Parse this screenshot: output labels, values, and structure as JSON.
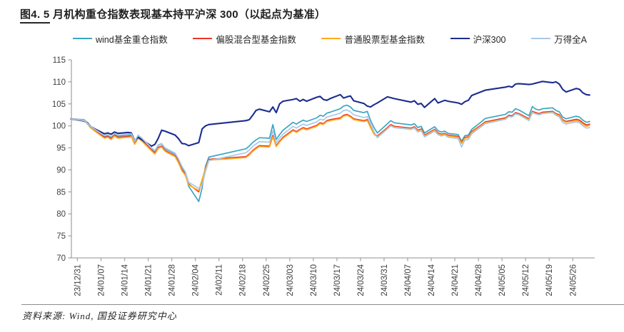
{
  "header": {
    "title_prefix": "图4. 5",
    "title_rest": " 月机构重仓指数表现基本持平沪深 300（以起点为基准）"
  },
  "footer": {
    "source": "资料来源: Wind, 国投证券研究中心"
  },
  "chart_data": {
    "type": "line",
    "title": "图4. 5 月机构重仓指数表现基本持平沪深 300（以起点为基准）",
    "xlabel": "",
    "ylabel": "",
    "ylim": [
      70,
      115
    ],
    "y_ticks": [
      70,
      75,
      80,
      85,
      90,
      95,
      100,
      105,
      110,
      115
    ],
    "x_tick_labels": [
      "23/12/31",
      "24/01/07",
      "24/01/14",
      "24/01/21",
      "24/01/28",
      "24/02/04",
      "24/02/11",
      "24/02/18",
      "24/02/25",
      "24/03/03",
      "24/03/10",
      "24/03/17",
      "24/03/24",
      "24/03/31",
      "24/04/07",
      "24/04/14",
      "24/04/21",
      "24/04/28",
      "24/05/05",
      "24/05/12",
      "24/05/19",
      "24/05/26"
    ],
    "legend_position": "top",
    "grid": false,
    "colors": {
      "axis": "#a6a6a6",
      "tick_text": "#404040"
    },
    "x": [
      "23/12/29",
      "24/01/02",
      "24/01/03",
      "24/01/04",
      "24/01/05",
      "24/01/08",
      "24/01/09",
      "24/01/10",
      "24/01/11",
      "24/01/12",
      "24/01/15",
      "24/01/16",
      "24/01/17",
      "24/01/18",
      "24/01/19",
      "24/01/22",
      "24/01/23",
      "24/01/24",
      "24/01/25",
      "24/01/26",
      "24/01/29",
      "24/01/30",
      "24/01/31",
      "24/02/01",
      "24/02/02",
      "24/02/05",
      "24/02/06",
      "24/02/07",
      "24/02/08",
      "24/02/19",
      "24/02/20",
      "24/02/21",
      "24/02/22",
      "24/02/23",
      "24/02/26",
      "24/02/27",
      "24/02/28",
      "24/02/29",
      "24/03/01",
      "24/03/04",
      "24/03/05",
      "24/03/06",
      "24/03/07",
      "24/03/08",
      "24/03/11",
      "24/03/12",
      "24/03/13",
      "24/03/14",
      "24/03/15",
      "24/03/18",
      "24/03/19",
      "24/03/20",
      "24/03/21",
      "24/03/22",
      "24/03/25",
      "24/03/26",
      "24/03/27",
      "24/03/28",
      "24/03/29",
      "24/04/01",
      "24/04/02",
      "24/04/03",
      "24/04/08",
      "24/04/09",
      "24/04/10",
      "24/04/11",
      "24/04/12",
      "24/04/15",
      "24/04/16",
      "24/04/17",
      "24/04/18",
      "24/04/19",
      "24/04/22",
      "24/04/23",
      "24/04/24",
      "24/04/25",
      "24/04/26",
      "24/04/29",
      "24/04/30",
      "24/05/06",
      "24/05/07",
      "24/05/08",
      "24/05/09",
      "24/05/10",
      "24/05/13",
      "24/05/14",
      "24/05/15",
      "24/05/16",
      "24/05/17",
      "24/05/20",
      "24/05/21",
      "24/05/22",
      "24/05/23",
      "24/05/24",
      "24/05/27",
      "24/05/28",
      "24/05/29",
      "24/05/30",
      "24/05/31"
    ],
    "series": [
      {
        "name": "wind基金重仓指数",
        "color": "#3aa6c3",
        "values": [
          101.6,
          101.4,
          100.6,
          99.7,
          99.2,
          97.6,
          97.8,
          97.4,
          98.2,
          97.7,
          97.9,
          98.0,
          96.3,
          97.8,
          97.2,
          94.9,
          94.2,
          95.6,
          95.9,
          94.8,
          93.6,
          92.2,
          90.3,
          89.2,
          86.3,
          82.8,
          85.9,
          90.8,
          92.9,
          94.8,
          95.4,
          96.2,
          96.8,
          97.3,
          97.2,
          100.3,
          96.9,
          98.0,
          99.0,
          100.8,
          100.4,
          100.9,
          101.3,
          101.0,
          101.8,
          102.4,
          102.2,
          102.9,
          103.1,
          103.9,
          104.5,
          104.7,
          104.3,
          103.5,
          103.0,
          103.3,
          101.2,
          99.6,
          98.4,
          100.5,
          101.2,
          100.7,
          100.2,
          100.5,
          99.6,
          99.9,
          98.4,
          99.8,
          98.9,
          98.6,
          98.8,
          98.3,
          98.0,
          96.5,
          97.8,
          97.9,
          99.2,
          101.0,
          101.7,
          102.6,
          103.2,
          103.1,
          103.9,
          103.6,
          102.3,
          104.4,
          103.8,
          103.6,
          103.9,
          104.1,
          103.5,
          103.2,
          102.0,
          101.6,
          102.2,
          102.0,
          101.3,
          100.8,
          101.0
        ]
      },
      {
        "name": "偏股混合型基金指数",
        "color": "#ee3326",
        "values": [
          101.6,
          101.3,
          100.5,
          99.6,
          99.0,
          97.4,
          97.6,
          97.1,
          97.9,
          97.4,
          97.6,
          97.7,
          96.0,
          97.4,
          96.8,
          94.5,
          93.8,
          95.1,
          95.4,
          94.4,
          93.2,
          91.8,
          90.0,
          89.0,
          86.8,
          85.0,
          87.6,
          90.4,
          92.4,
          93.0,
          93.6,
          94.4,
          95.0,
          95.5,
          95.4,
          97.8,
          95.5,
          96.5,
          97.4,
          99.1,
          98.7,
          99.2,
          99.6,
          99.3,
          100.1,
          100.7,
          100.5,
          101.2,
          101.4,
          101.8,
          102.4,
          102.6,
          102.2,
          101.6,
          101.2,
          101.4,
          99.8,
          98.3,
          97.7,
          99.6,
          100.3,
          99.9,
          99.5,
          99.8,
          99.0,
          99.3,
          97.9,
          99.2,
          98.4,
          98.1,
          98.3,
          97.9,
          97.6,
          96.2,
          97.4,
          97.5,
          98.7,
          100.3,
          100.9,
          101.8,
          102.4,
          102.3,
          103.0,
          102.8,
          101.6,
          103.3,
          103.0,
          102.8,
          103.1,
          103.3,
          102.8,
          102.5,
          101.4,
          101.0,
          101.5,
          101.3,
          100.7,
          100.2,
          100.4
        ]
      },
      {
        "name": "普通股票型基金指数",
        "color": "#ffaa1c",
        "values": [
          101.6,
          101.3,
          100.4,
          99.5,
          98.9,
          97.2,
          97.4,
          96.9,
          97.7,
          97.2,
          97.4,
          97.5,
          95.8,
          97.2,
          96.6,
          94.3,
          93.6,
          94.9,
          95.2,
          94.2,
          93.0,
          91.6,
          89.8,
          88.8,
          86.6,
          85.3,
          87.8,
          90.2,
          92.2,
          92.8,
          93.4,
          94.2,
          94.8,
          95.3,
          95.2,
          97.5,
          95.3,
          96.3,
          97.2,
          98.9,
          98.5,
          99.0,
          99.4,
          99.1,
          99.9,
          100.5,
          100.3,
          101.0,
          101.2,
          101.6,
          102.2,
          102.4,
          102.0,
          101.4,
          101.0,
          101.2,
          99.6,
          98.1,
          97.5,
          99.4,
          100.1,
          99.7,
          99.3,
          99.6,
          98.8,
          99.1,
          97.7,
          99.0,
          98.2,
          97.9,
          98.1,
          97.7,
          97.4,
          96.0,
          97.2,
          97.3,
          98.5,
          100.1,
          100.7,
          101.6,
          102.2,
          102.1,
          102.8,
          102.6,
          101.4,
          103.1,
          102.8,
          102.6,
          102.9,
          103.1,
          102.6,
          102.3,
          101.2,
          100.8,
          101.2,
          101.0,
          100.4,
          99.9,
          100.1
        ]
      },
      {
        "name": "沪深300",
        "color": "#1b2d8e",
        "values": [
          101.6,
          101.1,
          100.7,
          99.8,
          99.4,
          98.2,
          98.4,
          98.1,
          98.6,
          98.3,
          98.5,
          98.4,
          96.6,
          97.4,
          96.9,
          95.4,
          95.8,
          97.2,
          99.0,
          98.8,
          97.9,
          97.1,
          96.0,
          95.9,
          95.5,
          96.2,
          99.3,
          100.0,
          100.3,
          101.2,
          101.4,
          102.4,
          103.5,
          103.8,
          103.2,
          104.3,
          103.0,
          105.0,
          105.6,
          106.0,
          106.2,
          105.6,
          106.0,
          105.6,
          106.5,
          106.7,
          106.0,
          105.8,
          106.2,
          107.1,
          106.3,
          106.6,
          106.8,
          105.7,
          105.1,
          104.5,
          104.3,
          104.8,
          105.2,
          106.6,
          106.4,
          106.2,
          105.4,
          105.7,
          104.9,
          105.1,
          104.2,
          106.2,
          105.2,
          105.5,
          105.8,
          105.6,
          105.2,
          104.9,
          105.5,
          105.8,
          106.9,
          107.8,
          108.1,
          108.8,
          109.0,
          108.8,
          109.5,
          109.6,
          109.4,
          109.5,
          109.7,
          109.9,
          110.1,
          109.8,
          110.0,
          109.5,
          108.3,
          107.7,
          108.5,
          108.3,
          107.5,
          107.1,
          107.0
        ]
      },
      {
        "name": "万得全A",
        "color": "#a8c9e8",
        "values": [
          101.6,
          101.2,
          100.6,
          99.8,
          99.3,
          97.8,
          98.0,
          97.6,
          98.3,
          97.9,
          98.1,
          98.2,
          96.5,
          97.9,
          97.3,
          95.0,
          94.4,
          95.7,
          96.0,
          95.0,
          93.8,
          92.5,
          90.8,
          89.6,
          87.2,
          85.8,
          86.6,
          89.6,
          92.1,
          93.9,
          94.5,
          95.3,
          95.9,
          96.4,
          96.3,
          98.9,
          96.1,
          97.2,
          98.1,
          99.9,
          99.5,
          100.0,
          100.4,
          100.1,
          100.9,
          101.5,
          101.3,
          102.0,
          102.2,
          102.9,
          103.5,
          103.6,
          103.2,
          102.5,
          101.9,
          102.1,
          100.4,
          98.7,
          97.3,
          99.3,
          100.0,
          99.6,
          99.2,
          99.5,
          98.6,
          98.9,
          97.5,
          98.8,
          98.0,
          97.7,
          97.9,
          97.4,
          97.1,
          95.2,
          96.8,
          96.9,
          98.2,
          99.9,
          100.5,
          101.5,
          102.1,
          102.0,
          102.7,
          102.5,
          101.2,
          103.0,
          102.7,
          102.5,
          102.8,
          103.0,
          102.4,
          102.0,
          100.8,
          100.4,
          100.9,
          100.7,
          100.0,
          99.5,
          99.6
        ]
      }
    ]
  }
}
